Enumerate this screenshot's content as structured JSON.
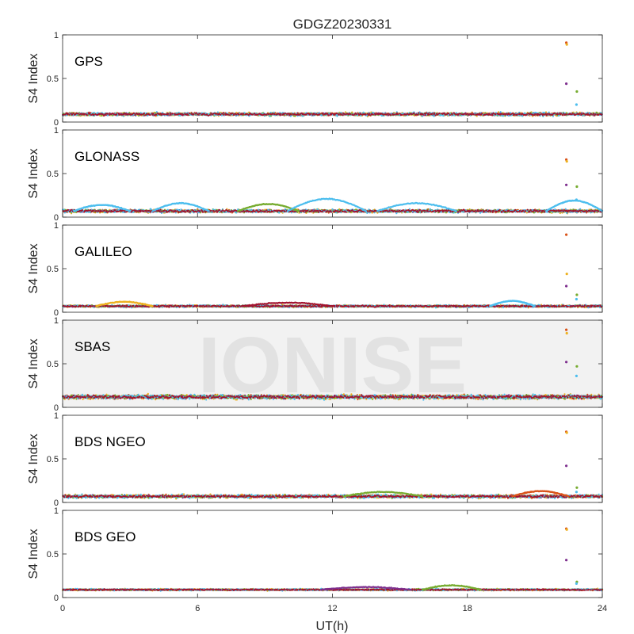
{
  "chart_data": {
    "type": "scatter",
    "title": "GDGZ20230331",
    "xlabel": "UT(h)",
    "ylabel": "S4 Index",
    "xlim": [
      0,
      24
    ],
    "ylim": [
      0,
      1
    ],
    "x_ticks": [
      "0",
      "6",
      "12",
      "18",
      "24"
    ],
    "y_ticks": [
      "0",
      "0.5",
      "1"
    ],
    "grid": false,
    "watermark": "IONISE",
    "watermark_panel": 3,
    "colors": [
      "#0072BD",
      "#D95319",
      "#EDB120",
      "#7E2F8E",
      "#77AC30",
      "#4DBEEE",
      "#A2142F"
    ],
    "panels": [
      {
        "label": "GPS",
        "baseline": 0.09,
        "noise": 0.03,
        "spike": {
          "x": 22.4,
          "values": [
            0.91,
            0.89,
            0.44,
            0.35,
            0.2
          ]
        },
        "hump_series": []
      },
      {
        "label": "GLONASS",
        "baseline": 0.07,
        "noise": 0.03,
        "spike": {
          "x": 22.4,
          "values": [
            0.66,
            0.64,
            0.37,
            0.35,
            0.2
          ]
        },
        "hump_series": [
          {
            "color": "#4DBEEE",
            "x_start": 0.5,
            "x_end": 3.0,
            "peak": 0.14
          },
          {
            "color": "#4DBEEE",
            "x_start": 4.0,
            "x_end": 6.5,
            "peak": 0.16
          },
          {
            "color": "#77AC30",
            "x_start": 7.8,
            "x_end": 10.5,
            "peak": 0.15
          },
          {
            "color": "#4DBEEE",
            "x_start": 10.0,
            "x_end": 13.5,
            "peak": 0.21
          },
          {
            "color": "#4DBEEE",
            "x_start": 14.0,
            "x_end": 17.5,
            "peak": 0.16
          },
          {
            "color": "#4DBEEE",
            "x_start": 21.5,
            "x_end": 24.0,
            "peak": 0.19
          }
        ]
      },
      {
        "label": "GALILEO",
        "baseline": 0.07,
        "noise": 0.02,
        "spike": {
          "x": 22.4,
          "values": [
            0.89,
            0.44,
            0.3,
            0.2,
            0.15
          ]
        },
        "hump_series": [
          {
            "color": "#EDB120",
            "x_start": 1.5,
            "x_end": 4.0,
            "peak": 0.12
          },
          {
            "color": "#A2142F",
            "x_start": 8.0,
            "x_end": 12.0,
            "peak": 0.11
          },
          {
            "color": "#4DBEEE",
            "x_start": 19.0,
            "x_end": 21.0,
            "peak": 0.13
          }
        ]
      },
      {
        "label": "SBAS",
        "baseline": 0.12,
        "noise": 0.04,
        "spike": {
          "x": 22.4,
          "values": [
            0.89,
            0.85,
            0.52,
            0.47,
            0.36
          ]
        },
        "hump_series": []
      },
      {
        "label": "BDS NGEO",
        "baseline": 0.07,
        "noise": 0.03,
        "spike": {
          "x": 22.4,
          "values": [
            0.81,
            0.8,
            0.42,
            0.17,
            0.12
          ]
        },
        "hump_series": [
          {
            "color": "#77AC30",
            "x_start": 12.5,
            "x_end": 16.0,
            "peak": 0.12
          },
          {
            "color": "#D95319",
            "x_start": 20.0,
            "x_end": 22.5,
            "peak": 0.13
          }
        ]
      },
      {
        "label": "BDS GEO",
        "baseline": 0.09,
        "noise": 0.015,
        "spike": {
          "x": 22.4,
          "values": [
            0.79,
            0.78,
            0.43,
            0.18,
            0.16
          ]
        },
        "hump_series": [
          {
            "color": "#77AC30",
            "x_start": 16.0,
            "x_end": 18.6,
            "peak": 0.14
          },
          {
            "color": "#7E2F8E",
            "x_start": 11.5,
            "x_end": 15.5,
            "peak": 0.12
          }
        ]
      }
    ]
  }
}
